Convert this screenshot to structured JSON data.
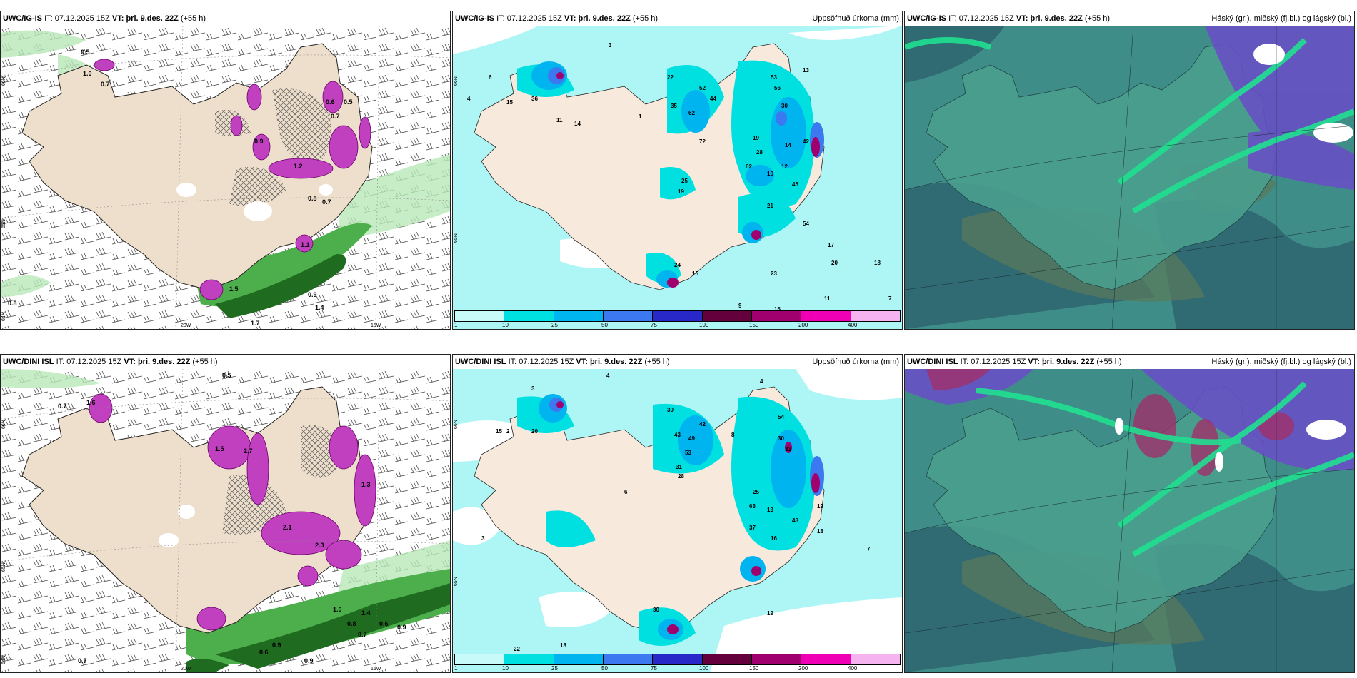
{
  "rows": [
    {
      "model": "UWC/IG-IS",
      "it_label": "IT:",
      "it": "07.12.2025 15Z",
      "vt_label": "VT:",
      "vt": "þri. 9.des. 22Z",
      "lead": "(+55 h)"
    },
    {
      "model": "UWC/DINI ISL",
      "it_label": "IT:",
      "it": "07.12.2025 15Z",
      "vt_label": "VT:",
      "vt": "þri. 9.des. 22Z",
      "lead": "(+55 h)"
    }
  ],
  "panel_titles": {
    "precip": "Uppsöfnuð úrkoma (mm)",
    "cloud": "Háský (gr.), miðský (fj.bl.) og lágský (bl.)"
  },
  "snow_panel": {
    "row1_labels": [
      "0.5",
      "1.0",
      "0.7",
      "0.6",
      "0.5",
      "0.7",
      "0.9",
      "1.2",
      "0.8",
      "0.7",
      "1.1",
      "1.5",
      "0.9",
      "1.4",
      "1.7",
      "0.8"
    ],
    "row1_axis": [
      "66N",
      "65N",
      "64N",
      "20W",
      "15W"
    ],
    "row2_labels": [
      "0.5",
      "0.7",
      "1.6",
      "1.5",
      "2.7",
      "1.3",
      "2.1",
      "2.3",
      "1.0",
      "1.4",
      "0.8",
      "0.7",
      "0.9",
      "0.6",
      "0.9",
      "0.7",
      "0.9",
      "0.6"
    ],
    "row2_axis": [
      "66N",
      "65N",
      "64N",
      "20W",
      "15W"
    ]
  },
  "precip_panel": {
    "colorbar_ticks": [
      "1",
      "10",
      "25",
      "50",
      "75",
      "100",
      "150",
      "200",
      "400"
    ],
    "colorbar_colors": [
      "#c8fafa",
      "#00e0e0",
      "#00b4f0",
      "#3c78f0",
      "#2828c8",
      "#64003c",
      "#a0006e",
      "#f000b4",
      "#f5b4f0"
    ],
    "row1_labels": [
      "3",
      "6",
      "4",
      "15",
      "36",
      "14",
      "11",
      "1",
      "22",
      "52",
      "53",
      "13",
      "35",
      "44",
      "62",
      "56",
      "30",
      "42",
      "72",
      "19",
      "28",
      "14",
      "12",
      "62",
      "10",
      "25",
      "19",
      "45",
      "21",
      "54",
      "17",
      "20",
      "18",
      "24",
      "15",
      "9",
      "23",
      "16",
      "11",
      "7"
    ],
    "row1_axis": [
      "66N",
      "65N"
    ],
    "row2_labels": [
      "4",
      "3",
      "2",
      "20",
      "15",
      "4",
      "30",
      "49",
      "43",
      "42",
      "8",
      "54",
      "30",
      "33",
      "53",
      "31",
      "28",
      "25",
      "63",
      "13",
      "37",
      "48",
      "19",
      "18",
      "16",
      "22",
      "30",
      "18",
      "25",
      "19",
      "7",
      "6",
      "3"
    ],
    "row2_axis": [
      "66N",
      "65N"
    ]
  },
  "colors": {
    "land": "#eedfcc",
    "magenta": "#c040c0",
    "green": "#2e8b2e",
    "cyan": "#aef6f6",
    "cloud_teal": "#4f9a8c",
    "cloud_dark": "#2e6470",
    "cloud_green": "#20e090",
    "cloud_violet": "#6a4cc8"
  }
}
